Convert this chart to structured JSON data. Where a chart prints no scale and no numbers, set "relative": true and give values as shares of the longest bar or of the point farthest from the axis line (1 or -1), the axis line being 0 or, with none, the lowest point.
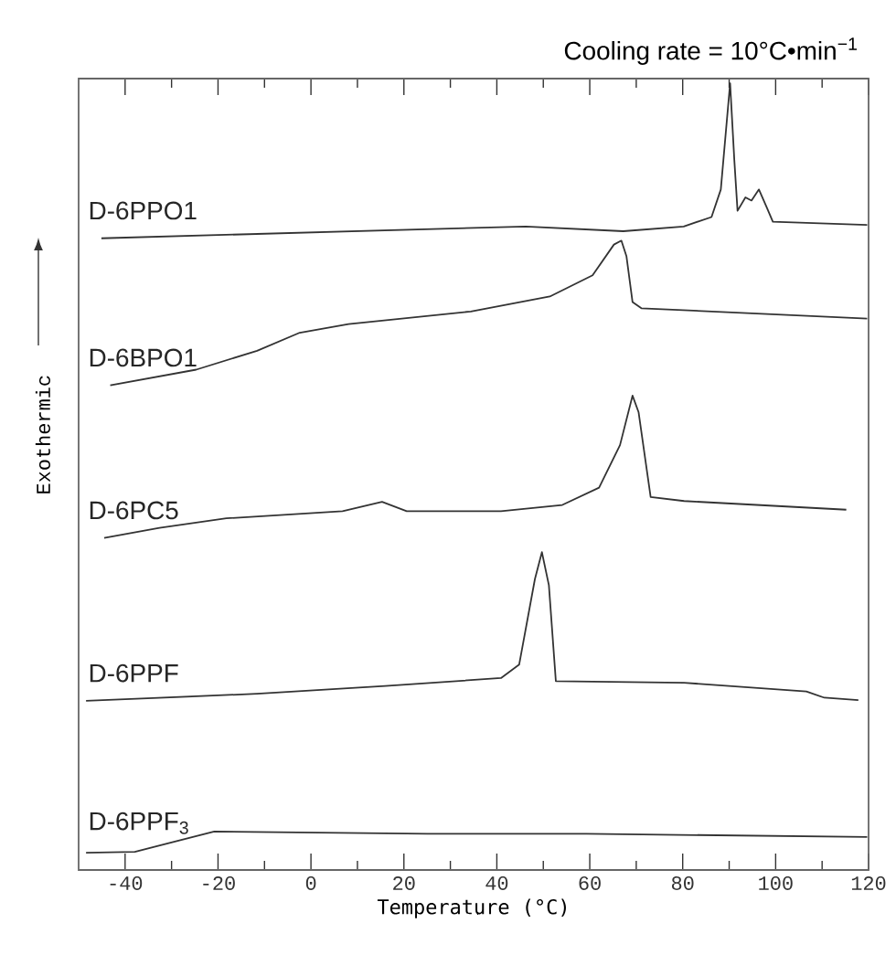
{
  "chart_data": {
    "type": "line",
    "title": "Cooling rate = 10°C•min$^{−1}$",
    "xlabel": "Temperature (°C)",
    "ylabel": "Exothermic",
    "relative": true,
    "xlim": [
      -50,
      120
    ],
    "xticks": [
      -40,
      {
        "value": -30,
        "label": null
      },
      -20,
      {
        "value": -10,
        "label": null
      },
      0,
      {
        "value": 10,
        "label": null
      },
      20,
      {
        "value": 30,
        "label": null
      },
      40,
      {
        "value": 50,
        "label": null
      },
      60,
      {
        "value": 70,
        "label": null
      },
      80,
      {
        "value": 90,
        "label": null
      },
      100,
      {
        "value": 110,
        "label": null
      },
      120
    ],
    "legend": false,
    "grid": false,
    "marker": "none",
    "line_style": "solid",
    "series": [
      {
        "name": "D-6PPO1",
        "color": "#333333",
        "x": [
          -45.1,
          46.2,
          67.2,
          80.2,
          86.2,
          88.2,
          90.2,
          91.1,
          91.8,
          93.5,
          94.8,
          96.4,
          98.1,
          99.4,
          119.7
        ],
        "values": [
          0.803,
          0.818,
          0.812,
          0.818,
          0.83,
          0.865,
          1.0,
          0.903,
          0.838,
          0.855,
          0.851,
          0.865,
          0.842,
          0.824,
          0.82
        ]
      },
      {
        "name": "D-6BPO1",
        "color": "#333333",
        "x": [
          -43.2,
          -24.7,
          -11.6,
          -2.4,
          8.1,
          34.4,
          51.4,
          60.6,
          65.2,
          66.8,
          67.9,
          69.2,
          71.1,
          119.7
        ],
        "values": [
          0.616,
          0.636,
          0.66,
          0.683,
          0.694,
          0.71,
          0.729,
          0.756,
          0.795,
          0.8,
          0.78,
          0.722,
          0.714,
          0.701
        ]
      },
      {
        "name": "D-6PC5",
        "color": "#333333",
        "x": [
          -44.5,
          -32.6,
          -18.2,
          6.8,
          15.3,
          20.6,
          40.9,
          54.1,
          62.0,
          66.5,
          69.2,
          70.5,
          73.1,
          80.3,
          115.2
        ],
        "values": [
          0.422,
          0.435,
          0.447,
          0.456,
          0.468,
          0.456,
          0.456,
          0.464,
          0.486,
          0.54,
          0.603,
          0.582,
          0.474,
          0.469,
          0.458
        ]
      },
      {
        "name": "D-6PPF",
        "color": "#333333",
        "x": [
          -48.4,
          -11.6,
          16.0,
          40.9,
          44.8,
          48.2,
          49.7,
          51.2,
          52.7,
          80.3,
          106.6,
          110.5,
          117.8
        ],
        "values": [
          0.215,
          0.224,
          0.234,
          0.244,
          0.261,
          0.37,
          0.404,
          0.362,
          0.24,
          0.238,
          0.227,
          0.219,
          0.216
        ]
      },
      {
        "name": "D-6PPF$_{3}$",
        "color": "#333333",
        "x": [
          -48.4,
          -37.9,
          -28.7,
          -20.8,
          25.1,
          59.3,
          119.7
        ],
        "values": [
          0.022,
          0.023,
          0.037,
          0.049,
          0.046,
          0.046,
          0.042
        ]
      }
    ]
  }
}
